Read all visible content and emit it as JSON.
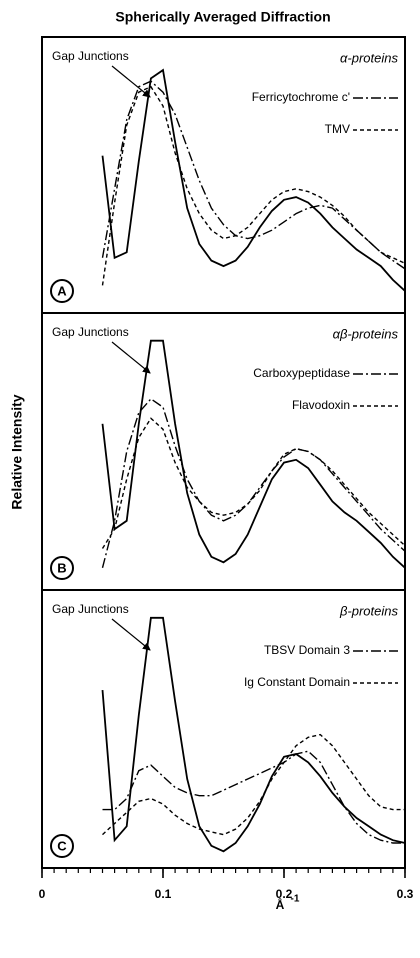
{
  "title": "Spherically Averaged Diffraction",
  "ylabel": "Relative Intensity",
  "xlabel": "Å",
  "xlabel_superscript": "-1",
  "chart_data": [
    {
      "type": "line",
      "panel": "A",
      "class_label": "α-proteins",
      "xlim": [
        0,
        0.3
      ],
      "ylim": [
        0,
        1
      ],
      "x": [
        0.05,
        0.06,
        0.07,
        0.08,
        0.09,
        0.1,
        0.11,
        0.12,
        0.13,
        0.14,
        0.15,
        0.16,
        0.17,
        0.18,
        0.19,
        0.2,
        0.21,
        0.22,
        0.23,
        0.24,
        0.25,
        0.26,
        0.27,
        0.28,
        0.29,
        0.3
      ],
      "series": [
        {
          "name": "Gap Junctions",
          "color": "#000000",
          "dash": "solid",
          "values": [
            0.57,
            0.2,
            0.22,
            0.55,
            0.85,
            0.88,
            0.62,
            0.38,
            0.25,
            0.19,
            0.17,
            0.19,
            0.24,
            0.31,
            0.37,
            0.41,
            0.42,
            0.4,
            0.36,
            0.31,
            0.27,
            0.23,
            0.2,
            0.17,
            0.12,
            0.08
          ]
        },
        {
          "name": "Ferricytochrome c'",
          "color": "#000000",
          "dash": "dashdot",
          "values": [
            0.2,
            0.45,
            0.7,
            0.82,
            0.84,
            0.8,
            0.72,
            0.6,
            0.48,
            0.38,
            0.32,
            0.28,
            0.27,
            0.28,
            0.3,
            0.33,
            0.36,
            0.38,
            0.39,
            0.38,
            0.34,
            0.3,
            0.26,
            0.22,
            0.19,
            0.16
          ]
        },
        {
          "name": "TMV",
          "color": "#000000",
          "dash": "dash",
          "values": [
            0.1,
            0.4,
            0.68,
            0.8,
            0.82,
            0.75,
            0.58,
            0.45,
            0.36,
            0.3,
            0.27,
            0.28,
            0.31,
            0.36,
            0.41,
            0.44,
            0.45,
            0.44,
            0.42,
            0.39,
            0.35,
            0.3,
            0.26,
            0.22,
            0.2,
            0.18
          ]
        }
      ]
    },
    {
      "type": "line",
      "panel": "B",
      "class_label": "αβ-proteins",
      "xlim": [
        0,
        0.3
      ],
      "ylim": [
        0,
        1
      ],
      "x": [
        0.05,
        0.06,
        0.07,
        0.08,
        0.09,
        0.1,
        0.11,
        0.12,
        0.13,
        0.14,
        0.15,
        0.16,
        0.17,
        0.18,
        0.19,
        0.2,
        0.21,
        0.22,
        0.23,
        0.24,
        0.25,
        0.26,
        0.27,
        0.28,
        0.29,
        0.3
      ],
      "series": [
        {
          "name": "Gap Junctions",
          "color": "#000000",
          "dash": "solid",
          "values": [
            0.6,
            0.22,
            0.25,
            0.6,
            0.9,
            0.9,
            0.6,
            0.35,
            0.2,
            0.12,
            0.1,
            0.13,
            0.2,
            0.3,
            0.4,
            0.46,
            0.47,
            0.44,
            0.38,
            0.32,
            0.28,
            0.25,
            0.21,
            0.17,
            0.12,
            0.08
          ]
        },
        {
          "name": "Carboxypeptidase",
          "color": "#000000",
          "dash": "dashdot",
          "values": [
            0.08,
            0.25,
            0.5,
            0.64,
            0.69,
            0.66,
            0.52,
            0.4,
            0.32,
            0.27,
            0.25,
            0.27,
            0.31,
            0.37,
            0.43,
            0.48,
            0.51,
            0.5,
            0.47,
            0.42,
            0.37,
            0.32,
            0.27,
            0.22,
            0.18,
            0.14
          ]
        },
        {
          "name": "Flavodoxin",
          "color": "#000000",
          "dash": "dash",
          "values": [
            0.15,
            0.22,
            0.4,
            0.55,
            0.62,
            0.58,
            0.46,
            0.37,
            0.32,
            0.28,
            0.27,
            0.28,
            0.31,
            0.36,
            0.43,
            0.49,
            0.51,
            0.5,
            0.47,
            0.43,
            0.38,
            0.33,
            0.28,
            0.24,
            0.2,
            0.16
          ]
        }
      ]
    },
    {
      "type": "line",
      "panel": "C",
      "class_label": "β-proteins",
      "xlim": [
        0,
        0.3
      ],
      "ylim": [
        0,
        1
      ],
      "xticks": [
        0,
        0.1,
        0.2,
        0.3
      ],
      "xminor_ticks": [
        0,
        0.01,
        0.02,
        0.03,
        0.04,
        0.05,
        0.06,
        0.07,
        0.08,
        0.09,
        0.1,
        0.11,
        0.12,
        0.13,
        0.14,
        0.15,
        0.16,
        0.17,
        0.18,
        0.19,
        0.2,
        0.21,
        0.22,
        0.23,
        0.24,
        0.25,
        0.26,
        0.27,
        0.28,
        0.29,
        0.3
      ],
      "x": [
        0.05,
        0.06,
        0.07,
        0.08,
        0.09,
        0.1,
        0.11,
        0.12,
        0.13,
        0.14,
        0.15,
        0.16,
        0.17,
        0.18,
        0.19,
        0.2,
        0.21,
        0.22,
        0.23,
        0.24,
        0.25,
        0.26,
        0.27,
        0.28,
        0.29,
        0.3
      ],
      "series": [
        {
          "name": "Gap Junctions",
          "color": "#000000",
          "dash": "solid",
          "values": [
            0.64,
            0.1,
            0.15,
            0.55,
            0.9,
            0.9,
            0.6,
            0.32,
            0.15,
            0.08,
            0.06,
            0.09,
            0.15,
            0.23,
            0.33,
            0.4,
            0.41,
            0.38,
            0.33,
            0.27,
            0.22,
            0.18,
            0.15,
            0.12,
            0.1,
            0.09
          ]
        },
        {
          "name": "TBSV Domain 3",
          "color": "#000000",
          "dash": "dashdot",
          "values": [
            0.21,
            0.21,
            0.25,
            0.35,
            0.37,
            0.33,
            0.29,
            0.27,
            0.26,
            0.26,
            0.28,
            0.3,
            0.32,
            0.34,
            0.36,
            0.38,
            0.41,
            0.42,
            0.38,
            0.3,
            0.22,
            0.16,
            0.12,
            0.1,
            0.09,
            0.09
          ]
        },
        {
          "name": "Ig Constant Domain",
          "color": "#000000",
          "dash": "dash",
          "values": [
            0.12,
            0.16,
            0.2,
            0.24,
            0.25,
            0.23,
            0.19,
            0.16,
            0.14,
            0.13,
            0.12,
            0.14,
            0.18,
            0.24,
            0.32,
            0.38,
            0.44,
            0.47,
            0.48,
            0.44,
            0.38,
            0.32,
            0.26,
            0.22,
            0.21,
            0.21
          ]
        }
      ]
    }
  ]
}
